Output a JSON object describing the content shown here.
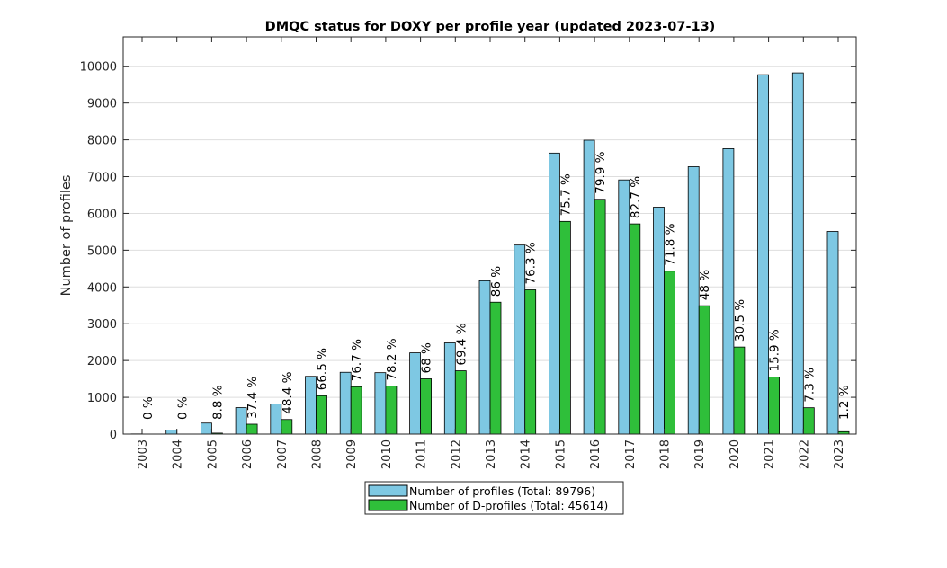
{
  "chart_data": {
    "type": "bar",
    "title": "DMQC status for DOXY per profile year (updated 2023-07-13)",
    "xlabel": "",
    "ylabel": "Number of profiles",
    "ylim": [
      0,
      10800
    ],
    "yticks": [
      0,
      1000,
      2000,
      3000,
      4000,
      5000,
      6000,
      7000,
      8000,
      9000,
      10000
    ],
    "grid": "horizontal",
    "legend_position": "bottom-center",
    "categories": [
      "2003",
      "2004",
      "2005",
      "2006",
      "2007",
      "2008",
      "2009",
      "2010",
      "2011",
      "2012",
      "2013",
      "2014",
      "2015",
      "2016",
      "2017",
      "2018",
      "2019",
      "2020",
      "2021",
      "2022",
      "2023"
    ],
    "series": [
      {
        "name": "Number of profiles (Total: 89796)",
        "color": "#7ec8e3",
        "values": [
          5,
          110,
          300,
          720,
          820,
          1570,
          1680,
          1670,
          2210,
          2480,
          4170,
          5140,
          7640,
          7990,
          6910,
          6170,
          7270,
          7760,
          9770,
          9820,
          5510
        ]
      },
      {
        "name": "Number of D-profiles (Total: 45614)",
        "color": "#2fbf3a",
        "values": [
          0,
          0,
          26,
          269,
          397,
          1044,
          1289,
          1306,
          1503,
          1721,
          3586,
          3922,
          5783,
          6384,
          5715,
          4430,
          3490,
          2367,
          1553,
          717,
          66
        ]
      }
    ],
    "annotations": [
      "0 %",
      "0 %",
      "8.8 %",
      "37.4 %",
      "48.4 %",
      "66.5 %",
      "76.7 %",
      "78.2 %",
      "68 %",
      "69.4 %",
      "86 %",
      "76.3 %",
      "75.7 %",
      "79.9 %",
      "82.7 %",
      "71.8 %",
      "48 %",
      "30.5 %",
      "15.9 %",
      "7.3 %",
      "1.2 %"
    ]
  }
}
